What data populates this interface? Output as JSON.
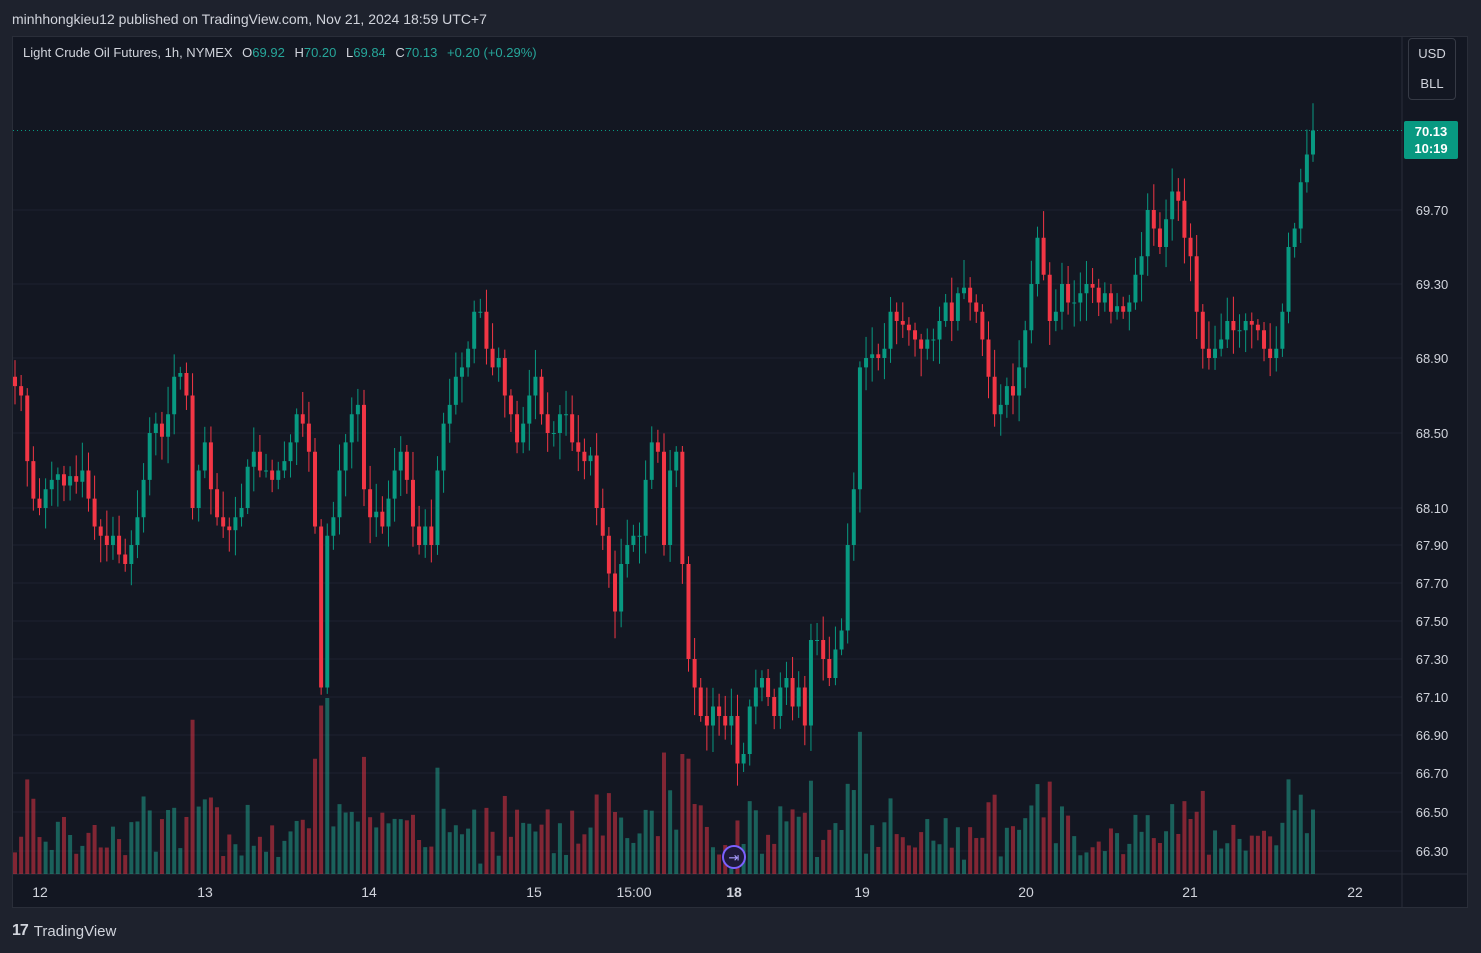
{
  "header": {
    "published_text": "minhhongkieu12 published on TradingView.com, Nov 21, 2024 18:59 UTC+7"
  },
  "legend": {
    "symbol": "Light Crude Oil Futures, 1h, NYMEX",
    "open_label": "O",
    "open": "69.92",
    "high_label": "H",
    "high": "70.20",
    "low_label": "L",
    "low": "69.84",
    "close_label": "C",
    "close": "70.13",
    "change": "+0.20 (+0.29%)"
  },
  "units": {
    "currency": "USD",
    "unit": "BLL"
  },
  "last_price": {
    "price": "70.13",
    "countdown": "10:19"
  },
  "footer": {
    "brand": "TradingView",
    "logo_glyph": "17"
  },
  "colors": {
    "up": "#089981",
    "down": "#f23645",
    "up_volume": "#22ab9480",
    "down_volume": "#f2364580",
    "background": "#131722",
    "grid": "#1c2030",
    "text": "#d1d4dc"
  },
  "chart_data": {
    "type": "candlestick",
    "interval": "1h",
    "y_ticks": [
      66.3,
      66.5,
      66.7,
      66.9,
      67.1,
      67.3,
      67.5,
      67.7,
      67.9,
      68.1,
      68.5,
      68.9,
      69.3,
      69.7
    ],
    "x_labels": [
      "12",
      "13",
      "14",
      "15",
      "15:00",
      "18",
      "19",
      "20",
      "21",
      "22"
    ],
    "x_label_bold": [
      "18"
    ],
    "close_series": [
      68.75,
      68.7,
      68.35,
      68.15,
      68.1,
      68.2,
      68.25,
      68.28,
      68.22,
      68.27,
      68.24,
      68.3,
      68.15,
      68.0,
      67.95,
      67.9,
      67.95,
      67.85,
      67.8,
      67.9,
      68.05,
      68.25,
      68.5,
      68.55,
      68.48,
      68.6,
      68.8,
      68.82,
      68.7,
      68.1,
      68.3,
      68.45,
      68.2,
      68.05,
      68.0,
      67.98,
      68.05,
      68.1,
      68.32,
      68.4,
      68.3,
      68.3,
      68.25,
      68.3,
      68.35,
      68.45,
      68.6,
      68.55,
      68.4,
      68.0,
      67.15,
      67.95,
      68.05,
      68.3,
      68.45,
      68.6,
      68.65,
      68.2,
      68.05,
      68.08,
      68.0,
      68.15,
      68.3,
      68.4,
      68.25,
      68.0,
      67.9,
      68.0,
      67.9,
      68.3,
      68.55,
      68.65,
      68.8,
      68.85,
      68.95,
      69.15,
      69.15,
      68.95,
      68.85,
      68.9,
      68.7,
      68.6,
      68.45,
      68.55,
      68.7,
      68.8,
      68.6,
      68.5,
      68.5,
      68.6,
      68.6,
      68.45,
      68.4,
      68.35,
      68.38,
      68.1,
      67.95,
      67.75,
      67.55,
      67.8,
      67.9,
      67.95,
      67.95,
      68.25,
      68.45,
      68.4,
      67.9,
      68.3,
      68.4,
      67.8,
      67.3,
      67.15,
      67.0,
      66.95,
      67.05,
      67.0,
      66.95,
      67.0,
      66.75,
      66.8,
      67.05,
      67.15,
      67.2,
      67.1,
      67.0,
      67.15,
      67.2,
      67.05,
      67.15,
      66.95,
      67.4,
      67.4,
      67.3,
      67.2,
      67.35,
      67.45,
      67.9,
      68.2,
      68.85,
      68.9,
      68.92,
      68.9,
      68.95,
      69.15,
      69.1,
      69.08,
      69.05,
      69.0,
      68.95,
      69.0,
      69.0,
      69.1,
      69.2,
      69.1,
      69.25,
      69.28,
      69.2,
      69.15,
      69.0,
      68.8,
      68.6,
      68.65,
      68.75,
      68.7,
      68.85,
      69.05,
      69.3,
      69.55,
      69.35,
      69.1,
      69.15,
      69.3,
      69.2,
      69.2,
      69.25,
      69.3,
      69.28,
      69.2,
      69.25,
      69.15,
      69.18,
      69.15,
      69.2,
      69.35,
      69.45,
      69.7,
      69.6,
      69.5,
      69.65,
      69.8,
      69.75,
      69.55,
      69.45,
      69.15,
      68.95,
      68.9,
      68.95,
      69.0,
      69.1,
      69.05,
      69.05,
      69.1,
      69.08,
      69.05,
      68.95,
      68.9,
      68.95,
      69.15,
      69.5,
      69.6,
      69.85,
      70.0,
      70.13
    ],
    "current_price": 70.13
  }
}
